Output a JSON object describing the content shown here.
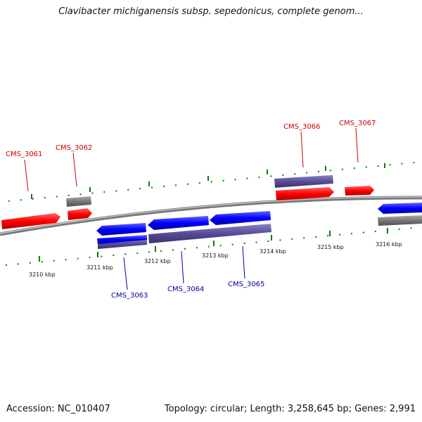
{
  "title": "Clavibacter michiganensis subsp. sepedonicus, complete genom...",
  "footer": {
    "accession": "Accession: NC_010407",
    "summary": "Topology: circular; Length: 3,258,645 bp; Genes: 2,991"
  },
  "colors": {
    "forward": "#ff0000",
    "reverse": "#0000ff",
    "forward_label": "#cc0000",
    "reverse_label": "#0000aa",
    "gray_gene": "#777777",
    "purple_gene": "#5b4f9a",
    "backbone": "#888888",
    "tick": "#008000"
  },
  "axis": {
    "tick_labels": [
      "3210 kbp",
      "3211 kbp",
      "3212 kbp",
      "3213 kbp",
      "3214 kbp",
      "3215 kbp",
      "3216 kbp"
    ]
  },
  "labels": {
    "top": [
      "CMS_3061",
      "CMS_3062",
      "CMS_3066",
      "CMS_3067"
    ],
    "bottom": [
      "CMS_3063",
      "CMS_3064",
      "CMS_3065"
    ]
  }
}
